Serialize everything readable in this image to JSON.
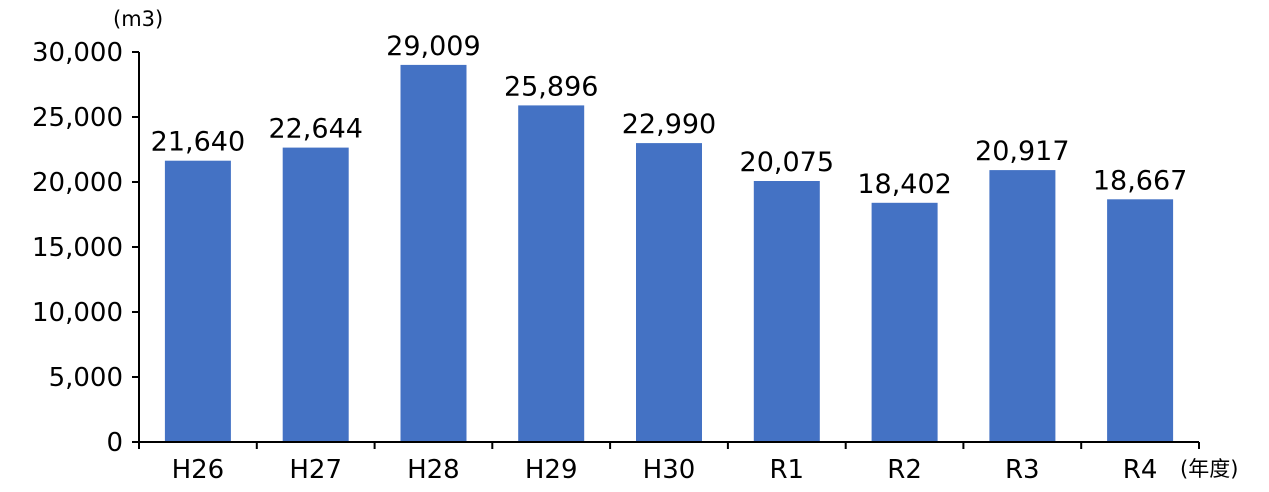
{
  "chart_data": {
    "type": "bar",
    "categories": [
      "H26",
      "H27",
      "H28",
      "H29",
      "H30",
      "R1",
      "R2",
      "R3",
      "R4"
    ],
    "values": [
      21640,
      22644,
      29009,
      25896,
      22990,
      20075,
      18402,
      20917,
      18667
    ],
    "data_labels": [
      "21,640",
      "22,644",
      "29,009",
      "25,896",
      "22,990",
      "20,075",
      "18,402",
      "20,917",
      "18,667"
    ],
    "y_unit_label": "(m3)",
    "x_unit_label": "(年度)",
    "ylim": [
      0,
      30000
    ],
    "y_ticks": [
      0,
      5000,
      10000,
      15000,
      20000,
      25000,
      30000
    ],
    "y_tick_labels": [
      "0",
      "5,000",
      "10,000",
      "15,000",
      "20,000",
      "25,000",
      "30,000"
    ],
    "grid": false,
    "bar_color": "#4472C4"
  }
}
